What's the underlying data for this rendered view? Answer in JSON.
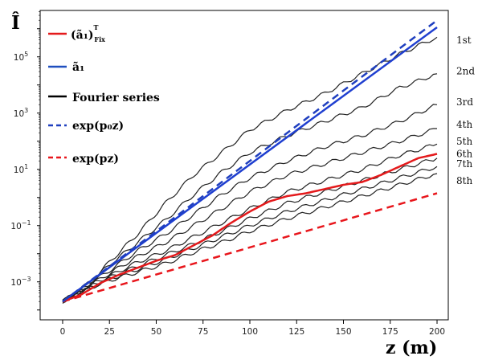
{
  "chart_data": {
    "type": "line",
    "title": "",
    "xlabel": "z (m)",
    "ylabel": "Î",
    "y_scale": "log",
    "xlim": [
      -12,
      206
    ],
    "ylim_log10": [
      -4.35,
      6.65
    ],
    "x_ticks": [
      0,
      25,
      50,
      75,
      100,
      125,
      150,
      175,
      200
    ],
    "y_ticks": [
      {
        "exp": 5,
        "label_base": "10",
        "label_exp": "5"
      },
      {
        "exp": 3,
        "label_base": "10",
        "label_exp": "3"
      },
      {
        "exp": 1,
        "label_base": "10",
        "label_exp": "1"
      },
      {
        "exp": -1,
        "label_base": "10",
        "label_exp": "−1"
      },
      {
        "exp": -3,
        "label_base": "10",
        "label_exp": "−3"
      }
    ],
    "grid": false,
    "legend_position": "top-left",
    "legend": [
      {
        "key": "fix",
        "text": "(ã₁)",
        "sup": "T",
        "sub": "Fix",
        "color": "#e41a1c",
        "dash": false
      },
      {
        "key": "a1",
        "text": "ã₁",
        "color": "#1f4fbf",
        "dash": false
      },
      {
        "key": "fourier",
        "text": "Fourier series",
        "color": "#000000",
        "dash": false
      },
      {
        "key": "p0",
        "text": "exp(p₀z)",
        "color": "#1f3fbf",
        "dash": true
      },
      {
        "key": "p",
        "text": "exp(pz)",
        "color": "#e8161c",
        "dash": true
      }
    ],
    "series": [
      {
        "key": "p0",
        "style": "dash",
        "color": "#1f3fbf",
        "points": [
          [
            0,
            -3.7
          ],
          [
            200,
            6.3
          ]
        ]
      },
      {
        "key": "a1",
        "style": "solid",
        "color": "#1f3fd0",
        "points": [
          [
            0,
            -3.7
          ],
          [
            200,
            6.05
          ]
        ]
      },
      {
        "key": "p",
        "style": "dash",
        "color": "#e8161c",
        "points": [
          [
            0,
            -3.7
          ],
          [
            200,
            0.15
          ]
        ]
      },
      {
        "key": "fix",
        "style": "solid",
        "color": "#e41a1c",
        "points": [
          [
            0,
            -3.7
          ],
          [
            10,
            -3.45
          ],
          [
            20,
            -3.05
          ],
          [
            30,
            -2.75
          ],
          [
            40,
            -2.5
          ],
          [
            50,
            -2.25
          ],
          [
            60,
            -2.05
          ],
          [
            70,
            -1.7
          ],
          [
            80,
            -1.35
          ],
          [
            90,
            -0.9
          ],
          [
            100,
            -0.5
          ],
          [
            110,
            -0.15
          ],
          [
            120,
            0.05
          ],
          [
            130,
            0.15
          ],
          [
            140,
            0.3
          ],
          [
            150,
            0.45
          ],
          [
            160,
            0.55
          ],
          [
            170,
            0.8
          ],
          [
            180,
            1.1
          ],
          [
            190,
            1.4
          ],
          [
            200,
            1.55
          ]
        ]
      },
      {
        "key": "fourier",
        "order": "1st",
        "style": "solid",
        "color": "#222222",
        "points": [
          [
            0,
            -3.7
          ],
          [
            15,
            -3.0
          ],
          [
            25,
            -2.3
          ],
          [
            40,
            -1.3
          ],
          [
            55,
            -0.2
          ],
          [
            70,
            0.8
          ],
          [
            85,
            1.6
          ],
          [
            100,
            2.4
          ],
          [
            120,
            3.1
          ],
          [
            140,
            3.7
          ],
          [
            160,
            4.4
          ],
          [
            180,
            5.1
          ],
          [
            200,
            5.7
          ]
        ]
      },
      {
        "key": "fourier",
        "order": "2nd",
        "style": "solid",
        "color": "#222222",
        "points": [
          [
            0,
            -3.7
          ],
          [
            15,
            -3.0
          ],
          [
            25,
            -2.4
          ],
          [
            40,
            -1.6
          ],
          [
            55,
            -0.8
          ],
          [
            70,
            0.1
          ],
          [
            85,
            0.9
          ],
          [
            100,
            1.6
          ],
          [
            120,
            2.2
          ],
          [
            140,
            2.7
          ],
          [
            160,
            3.2
          ],
          [
            180,
            3.9
          ],
          [
            200,
            4.4
          ]
        ]
      },
      {
        "key": "fourier",
        "order": "3rd",
        "style": "solid",
        "color": "#222222",
        "points": [
          [
            0,
            -3.7
          ],
          [
            15,
            -3.05
          ],
          [
            25,
            -2.6
          ],
          [
            40,
            -1.9
          ],
          [
            55,
            -1.3
          ],
          [
            70,
            -0.6
          ],
          [
            85,
            0.1
          ],
          [
            100,
            0.7
          ],
          [
            120,
            1.3
          ],
          [
            140,
            1.8
          ],
          [
            160,
            2.2
          ],
          [
            180,
            2.7
          ],
          [
            200,
            3.3
          ]
        ]
      },
      {
        "key": "fourier",
        "order": "4th",
        "style": "solid",
        "color": "#222222",
        "points": [
          [
            0,
            -3.7
          ],
          [
            15,
            -3.1
          ],
          [
            25,
            -2.7
          ],
          [
            40,
            -2.1
          ],
          [
            55,
            -1.6
          ],
          [
            70,
            -1.0
          ],
          [
            85,
            -0.4
          ],
          [
            100,
            0.2
          ],
          [
            120,
            0.8
          ],
          [
            140,
            1.2
          ],
          [
            160,
            1.6
          ],
          [
            180,
            2.0
          ],
          [
            200,
            2.45
          ]
        ]
      },
      {
        "key": "fourier",
        "order": "5th",
        "style": "solid",
        "color": "#222222",
        "points": [
          [
            0,
            -3.7
          ],
          [
            15,
            -3.1
          ],
          [
            25,
            -2.8
          ],
          [
            40,
            -2.3
          ],
          [
            55,
            -1.9
          ],
          [
            70,
            -1.4
          ],
          [
            85,
            -0.9
          ],
          [
            100,
            -0.4
          ],
          [
            120,
            0.2
          ],
          [
            140,
            0.6
          ],
          [
            160,
            1.0
          ],
          [
            180,
            1.5
          ],
          [
            200,
            1.9
          ]
        ]
      },
      {
        "key": "fourier",
        "order": "6th",
        "style": "solid",
        "color": "#222222",
        "points": [
          [
            0,
            -3.7
          ],
          [
            15,
            -3.15
          ],
          [
            25,
            -2.85
          ],
          [
            40,
            -2.45
          ],
          [
            55,
            -2.05
          ],
          [
            70,
            -1.65
          ],
          [
            85,
            -1.2
          ],
          [
            100,
            -0.75
          ],
          [
            120,
            -0.2
          ],
          [
            140,
            0.2
          ],
          [
            160,
            0.6
          ],
          [
            180,
            1.0
          ],
          [
            200,
            1.4
          ]
        ]
      },
      {
        "key": "fourier",
        "order": "7th",
        "style": "solid",
        "color": "#222222",
        "points": [
          [
            0,
            -3.7
          ],
          [
            15,
            -3.2
          ],
          [
            25,
            -2.9
          ],
          [
            40,
            -2.55
          ],
          [
            55,
            -2.2
          ],
          [
            70,
            -1.8
          ],
          [
            85,
            -1.4
          ],
          [
            100,
            -1.0
          ],
          [
            120,
            -0.5
          ],
          [
            140,
            -0.1
          ],
          [
            160,
            0.3
          ],
          [
            180,
            0.7
          ],
          [
            200,
            1.1
          ]
        ]
      },
      {
        "key": "fourier",
        "order": "8th",
        "style": "solid",
        "color": "#222222",
        "points": [
          [
            0,
            -3.7
          ],
          [
            15,
            -3.2
          ],
          [
            25,
            -2.95
          ],
          [
            40,
            -2.65
          ],
          [
            55,
            -2.35
          ],
          [
            70,
            -1.95
          ],
          [
            85,
            -1.6
          ],
          [
            100,
            -1.2
          ],
          [
            120,
            -0.75
          ],
          [
            140,
            -0.35
          ],
          [
            160,
            0.05
          ],
          [
            180,
            0.45
          ],
          [
            200,
            0.85
          ]
        ]
      }
    ],
    "order_labels": [
      {
        "text": "1st",
        "value": 5.6
      },
      {
        "text": "2nd",
        "value": 4.5
      },
      {
        "text": "3rd",
        "value": 3.4
      },
      {
        "text": "4th",
        "value": 2.6
      },
      {
        "text": "5th",
        "value": 2.0
      },
      {
        "text": "6th",
        "value": 1.55
      },
      {
        "text": "7th",
        "value": 1.2
      },
      {
        "text": "8th",
        "value": 0.6
      }
    ]
  }
}
